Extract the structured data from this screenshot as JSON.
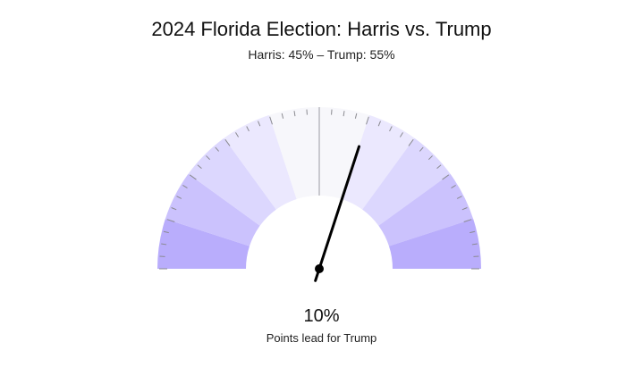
{
  "chart_data": {
    "type": "gauge",
    "title": "2024 Florida Election: Harris vs. Trump",
    "subtitle": "Harris: 45% – Trump: 55%",
    "value_label": "10%",
    "caption": "Points lead for Trump",
    "range": [
      -50,
      50
    ],
    "value": 10,
    "bands": [
      {
        "from": -50,
        "to": -40,
        "color": "#b9adfc"
      },
      {
        "from": -40,
        "to": -30,
        "color": "#cbc2fd"
      },
      {
        "from": -30,
        "to": -20,
        "color": "#dcd7fe"
      },
      {
        "from": -20,
        "to": -10,
        "color": "#ebe8fe"
      },
      {
        "from": -10,
        "to": 0,
        "color": "#f7f7fb"
      },
      {
        "from": 0,
        "to": 10,
        "color": "#f7f7fb"
      },
      {
        "from": 10,
        "to": 20,
        "color": "#ebe8fe"
      },
      {
        "from": 20,
        "to": 30,
        "color": "#dcd7fe"
      },
      {
        "from": 30,
        "to": 40,
        "color": "#cbc2fd"
      },
      {
        "from": 40,
        "to": 50,
        "color": "#b9adfc"
      }
    ],
    "tick_step": 2.5,
    "major_tick_step": 10,
    "center_line_value": 0
  }
}
